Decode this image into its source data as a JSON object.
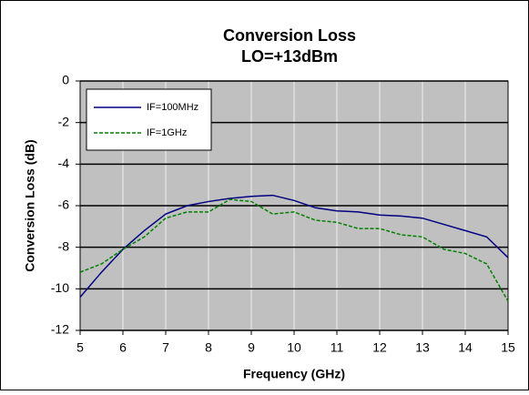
{
  "chart_data": {
    "type": "line",
    "title": "Conversion Loss",
    "subtitle": "LO=+13dBm",
    "x_label": "Frequency (GHz)",
    "y_label": "Conversion Loss (dB)",
    "x": [
      5,
      5.5,
      6,
      6.5,
      7,
      7.5,
      8,
      8.5,
      9,
      9.5,
      10,
      10.5,
      11,
      11.5,
      12,
      12.5,
      13,
      13.5,
      14,
      14.5,
      15
    ],
    "series": [
      {
        "name": "IF=100MHz",
        "color": "#000080",
        "dashed": false,
        "values": [
          -10.4,
          -9.2,
          -8.1,
          -7.2,
          -6.4,
          -6.0,
          -5.8,
          -5.65,
          -5.55,
          -5.5,
          -5.75,
          -6.1,
          -6.25,
          -6.3,
          -6.45,
          -6.5,
          -6.6,
          -6.9,
          -7.2,
          -7.5,
          -8.5
        ]
      },
      {
        "name": "IF=1GHz",
        "color": "#008000",
        "dashed": true,
        "values": [
          -9.2,
          -8.8,
          -8.1,
          -7.5,
          -6.6,
          -6.3,
          -6.3,
          -5.7,
          -5.8,
          -6.4,
          -6.3,
          -6.7,
          -6.8,
          -7.1,
          -7.1,
          -7.4,
          -7.5,
          -8.1,
          -8.3,
          -8.8,
          -10.6
        ]
      }
    ],
    "xlim": [
      5,
      15
    ],
    "xticks": [
      5,
      6,
      7,
      8,
      9,
      10,
      11,
      12,
      13,
      14,
      15
    ],
    "ylim": [
      -12,
      0
    ],
    "yticks": [
      0,
      -2,
      -4,
      -6,
      -8,
      -10,
      -12
    ],
    "grid": true,
    "legend": "upper left"
  }
}
